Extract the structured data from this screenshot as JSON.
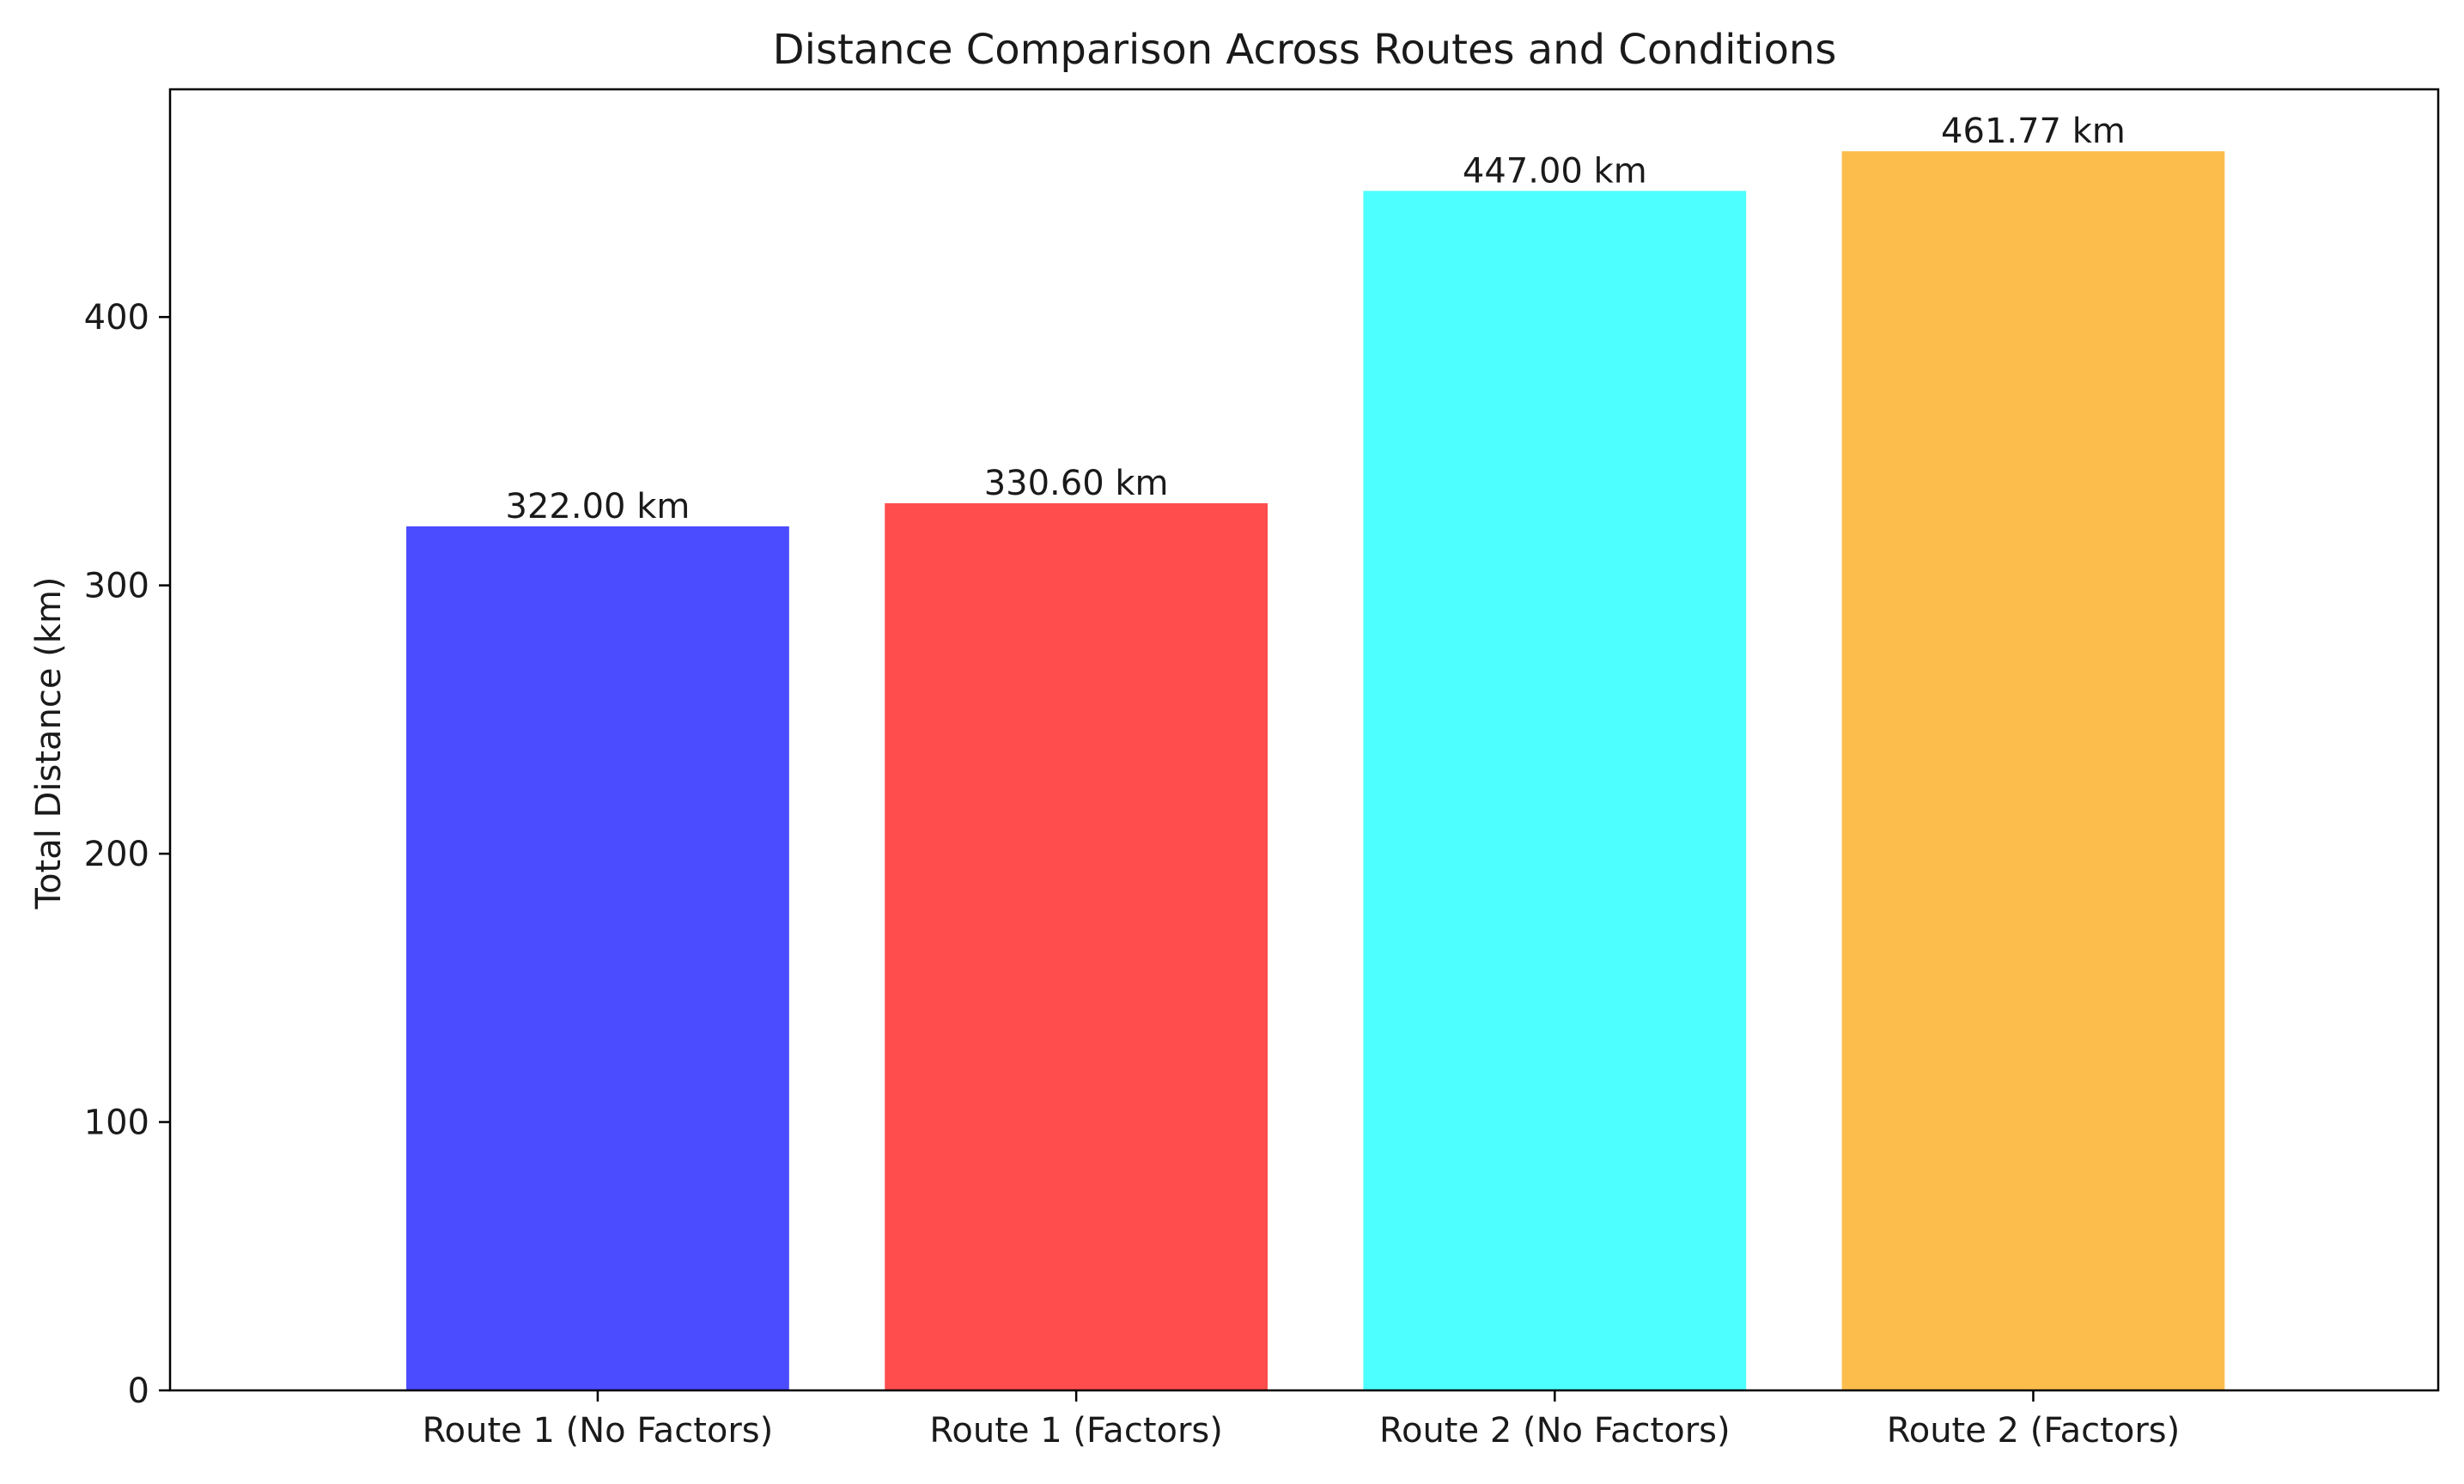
{
  "chart_data": {
    "type": "bar",
    "title": "Distance Comparison Across Routes and Conditions",
    "xlabel": "",
    "ylabel": "Total Distance (km)",
    "categories": [
      "Route 1 (No Factors)",
      "Route 1 (Factors)",
      "Route 2 (No Factors)",
      "Route 2 (Factors)"
    ],
    "values": [
      322.0,
      330.6,
      447.0,
      461.77
    ],
    "value_labels": [
      "322.00 km",
      "330.60 km",
      "447.00 km",
      "461.77 km"
    ],
    "colors": [
      "#4b4bff",
      "#ff4d4d",
      "#4dffff",
      "#fdbd4d"
    ],
    "ylim": [
      0,
      484.86
    ],
    "yticks": [
      0,
      100,
      200,
      300,
      400
    ],
    "grid": false,
    "legend": "none"
  }
}
